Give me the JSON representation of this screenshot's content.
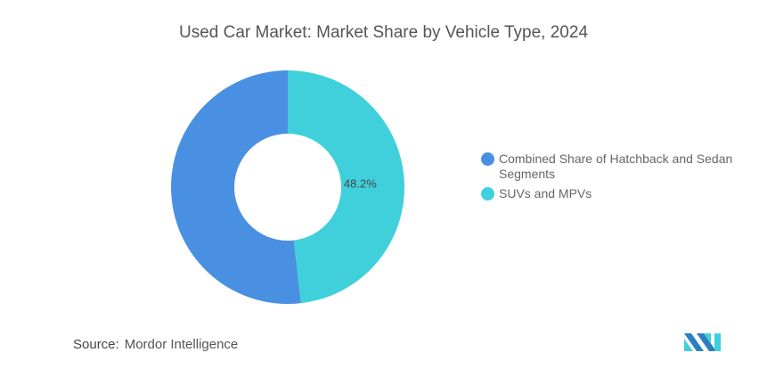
{
  "chart_data": {
    "type": "pie",
    "variant": "donut",
    "title": "Used Car Market: Market Share by Vehicle Type, 2024",
    "slices": [
      {
        "label": "SUVs and MPVs",
        "value": 48.2,
        "color": "#40d0dc",
        "data_label": "48.2%"
      },
      {
        "label": "Combined Share of Hatchback and Sedan Segments",
        "value": 51.8,
        "color": "#4a90e2",
        "data_label": ""
      }
    ],
    "legend_position": "right"
  },
  "source": {
    "label": "Source:",
    "name": "Mordor Intelligence"
  }
}
